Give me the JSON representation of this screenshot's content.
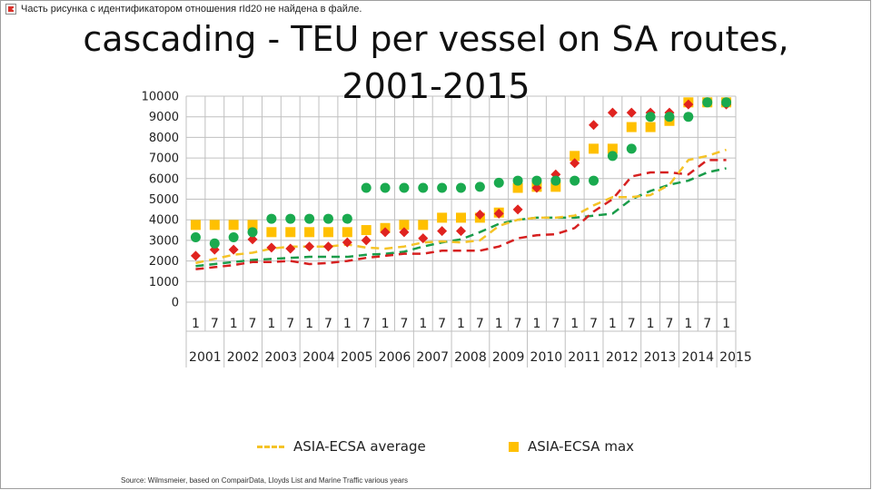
{
  "broken_image_text": "Часть рисунка с идентификатором отношения rId20 не найдена в файле.",
  "slide": {
    "title_line1": "cascading - TEU per vessel on SA routes,",
    "title_line2": "2001-2015",
    "source": "Source: Wilmsmeier, based on CompairData, Lloyds List and Marine Traffic various years"
  },
  "colors": {
    "average_dash": "#f5c327",
    "max_square": "#ffc000",
    "red_diamond": "#e0231f",
    "green_circle": "#1aaa4f",
    "red_dash": "#d62020",
    "green_dash": "#1a9c4a",
    "grid": "#c0c0c0"
  },
  "chart_data": {
    "type": "scatter",
    "x_periods": [
      "1",
      "7",
      "1",
      "7",
      "1",
      "7",
      "1",
      "7",
      "1",
      "7",
      "1",
      "7",
      "1",
      "7",
      "1",
      "7",
      "1",
      "7",
      "1",
      "7",
      "1",
      "7",
      "1",
      "7",
      "1",
      "7",
      "1",
      "7",
      "1"
    ],
    "x_years": [
      "2001",
      "2002",
      "2003",
      "2004",
      "2005",
      "2006",
      "2007",
      "2008",
      "2009",
      "2010",
      "2011",
      "2012",
      "2013",
      "2014",
      "2015"
    ],
    "ylim": [
      0,
      10000
    ],
    "y_ticks": [
      "0",
      "1000",
      "2000",
      "3000",
      "4000",
      "5000",
      "6000",
      "7000",
      "8000",
      "9000",
      "10000"
    ],
    "grid": true,
    "legend_position": "bottom",
    "legend": [
      {
        "label": "ASIA-ECSA average"
      },
      {
        "label": "ASIA-ECSA max"
      }
    ],
    "series": [
      {
        "name": "ASIA-ECSA average",
        "style": "dashed-line",
        "values": [
          1900,
          2100,
          2300,
          2400,
          2600,
          2700,
          2700,
          2700,
          2800,
          2650,
          2600,
          2700,
          2900,
          2950,
          2900,
          3000,
          3700,
          4000,
          4100,
          4100,
          4200,
          4700,
          5100,
          5100,
          5200,
          5700,
          6900,
          7100,
          7400
        ]
      },
      {
        "name": "ASIA-ECSA max",
        "style": "square-marker",
        "values": [
          3750,
          3750,
          3750,
          3750,
          3400,
          3400,
          3400,
          3400,
          3400,
          3500,
          3600,
          3750,
          3750,
          4100,
          4100,
          4100,
          4350,
          5550,
          5600,
          5600,
          7100,
          7450,
          7450,
          8500,
          8500,
          8800,
          9700,
          9700,
          9700
        ]
      },
      {
        "style": "diamond-marker",
        "values": [
          2250,
          2550,
          2550,
          3050,
          2650,
          2600,
          2700,
          2700,
          2900,
          3000,
          3400,
          3400,
          3100,
          3450,
          3450,
          4250,
          4300,
          4500,
          5550,
          6200,
          6750,
          8600,
          9200,
          9200,
          9200,
          9200,
          9600,
          9700,
          9600
        ]
      },
      {
        "style": "circle-marker",
        "values": [
          3150,
          2850,
          3150,
          3400,
          4050,
          4050,
          4050,
          4050,
          4050,
          5550,
          5550,
          5550,
          5550,
          5550,
          5550,
          5600,
          5800,
          5900,
          5900,
          5900,
          5900,
          5900,
          7100,
          7450,
          9000,
          9000,
          9000,
          9700,
          9700
        ]
      },
      {
        "style": "red-dashed-line",
        "values": [
          1600,
          1700,
          1800,
          1950,
          1950,
          2000,
          1850,
          1900,
          2000,
          2150,
          2250,
          2350,
          2350,
          2500,
          2500,
          2500,
          2700,
          3100,
          3250,
          3300,
          3600,
          4400,
          5000,
          6100,
          6300,
          6300,
          6200,
          6900,
          6900
        ]
      },
      {
        "style": "green-dashed-line",
        "values": [
          1750,
          1850,
          1950,
          2050,
          2100,
          2150,
          2200,
          2200,
          2200,
          2300,
          2350,
          2450,
          2700,
          2900,
          3050,
          3400,
          3800,
          4000,
          4100,
          4100,
          4100,
          4200,
          4300,
          5000,
          5400,
          5700,
          5900,
          6300,
          6500
        ]
      }
    ]
  }
}
